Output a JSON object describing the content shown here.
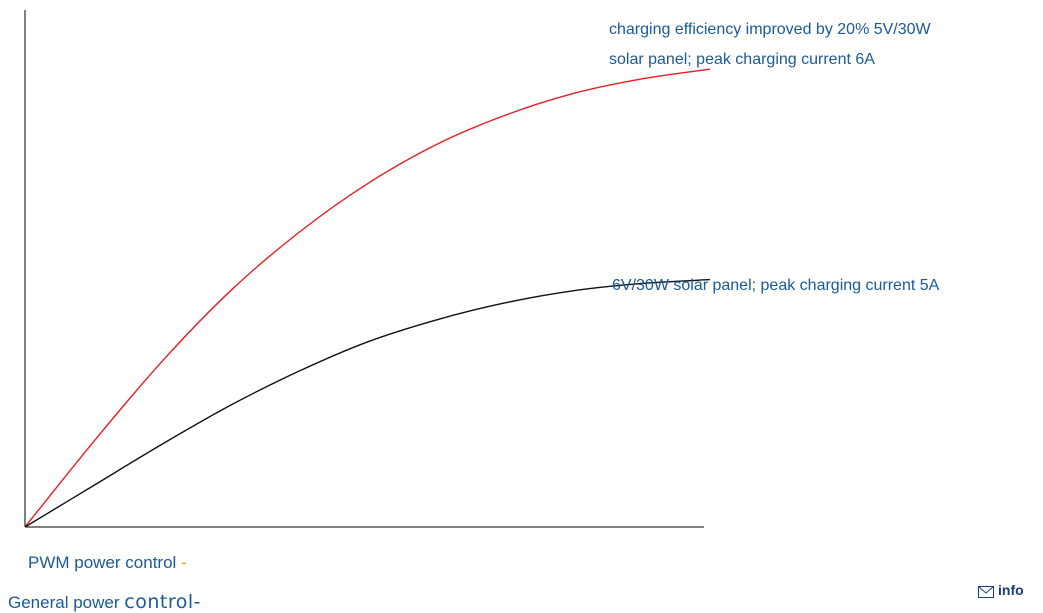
{
  "chart_data": {
    "type": "line",
    "title": "",
    "xlabel": "",
    "ylabel": "",
    "xlim": [
      0,
      10
    ],
    "ylim": [
      0,
      100
    ],
    "grid": false,
    "series": [
      {
        "name": "charging efficiency improved by 20% 5V/30W solar panel; peak charging current 6A",
        "color": "#e31e24",
        "x": [
          0,
          1,
          2,
          3,
          4,
          5,
          6,
          7,
          8,
          9,
          10
        ],
        "y": [
          0,
          17.5,
          34,
          48.5,
          60.5,
          70.5,
          78.5,
          84.5,
          89,
          92,
          94
        ]
      },
      {
        "name": "6V/30W solar panel; peak charging current 5A",
        "color": "#111111",
        "x": [
          0,
          1,
          2,
          3,
          4,
          5,
          6,
          7,
          8,
          9,
          10
        ],
        "y": [
          0,
          8.5,
          17,
          25,
          32,
          38,
          42.5,
          46,
          48.5,
          50,
          50.8
        ]
      }
    ],
    "annotations": {
      "red_line1": "charging efficiency improved by 20% 5V/30W",
      "red_line2": "solar panel; peak charging current 6A",
      "black": "6V/30W solar panel; peak charging current 5A"
    }
  },
  "legend": {
    "pwm_label": "PWM power control",
    "pwm_dash": "-",
    "general_label": "General power",
    "general_big": "control-"
  },
  "contact": {
    "email_fragment": "info"
  },
  "colors": {
    "annotation": "#1a5a96",
    "dash": "#f0a020",
    "axis": "#000000"
  }
}
